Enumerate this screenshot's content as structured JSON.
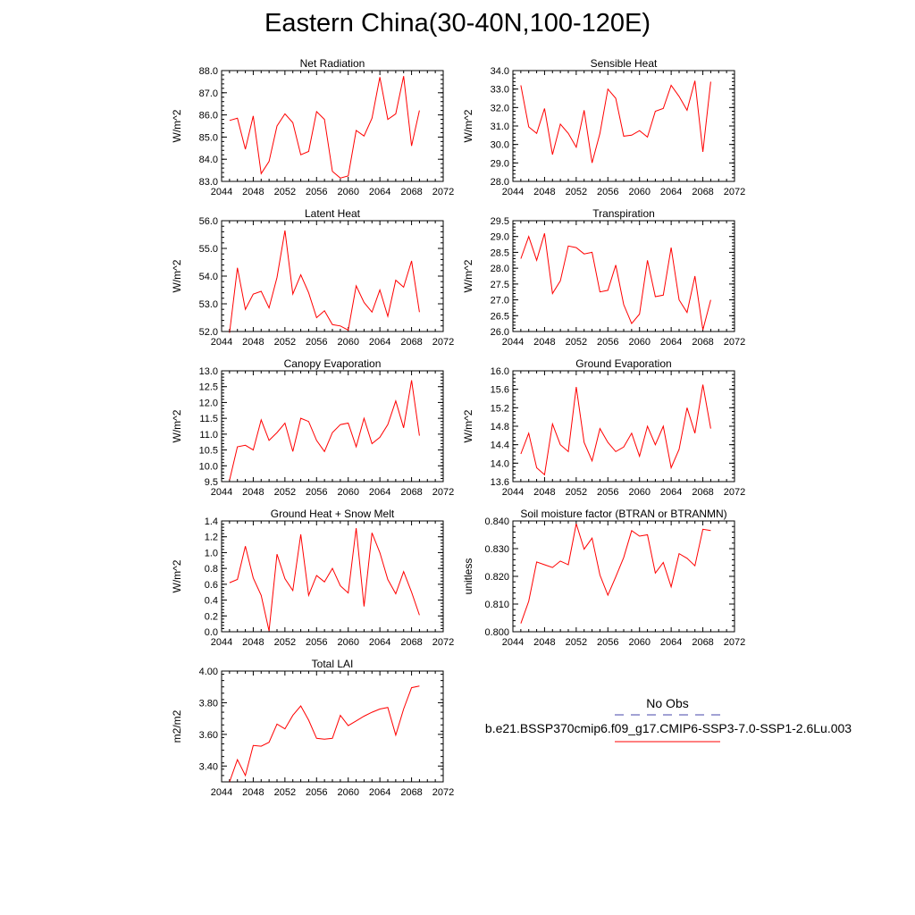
{
  "title": "Eastern China(30-40N,100-120E)",
  "legend": {
    "obs_label": "No Obs",
    "obs_color": "#4444aa",
    "case_label": "b.e21.BSSP370cmip6.f09_g17.CMIP6-SSP3-7.0-SSP1-2.6Lu.003",
    "case_color": "#ff0000"
  },
  "line_color": "#ff0000",
  "chart_data": [
    {
      "type": "line",
      "title": "Net Radiation",
      "ylabel": "W/m^2",
      "xlim": [
        2044,
        2072
      ],
      "ylim": [
        83.0,
        88.0
      ],
      "xticks": [
        "2044",
        "2048",
        "2052",
        "2056",
        "2060",
        "2064",
        "2068",
        "2072"
      ],
      "yticks": [
        "83.0",
        "84.0",
        "85.0",
        "86.0",
        "87.0",
        "88.0"
      ],
      "x": [
        2045,
        2046,
        2047,
        2048,
        2049,
        2050,
        2051,
        2052,
        2053,
        2054,
        2055,
        2056,
        2057,
        2058,
        2059,
        2060,
        2061,
        2062,
        2063,
        2064,
        2065,
        2066,
        2067,
        2068,
        2069
      ],
      "values": [
        85.75,
        85.85,
        84.45,
        85.95,
        83.35,
        83.9,
        85.5,
        86.05,
        85.65,
        84.2,
        84.35,
        86.15,
        85.8,
        83.45,
        83.15,
        83.25,
        85.3,
        85.05,
        85.85,
        87.7,
        85.8,
        86.05,
        87.75,
        84.6,
        86.2
      ]
    },
    {
      "type": "line",
      "title": "Sensible Heat",
      "ylabel": "W/m^2",
      "xlim": [
        2044,
        2072
      ],
      "ylim": [
        28.0,
        34.0
      ],
      "xticks": [
        "2044",
        "2048",
        "2052",
        "2056",
        "2060",
        "2064",
        "2068",
        "2072"
      ],
      "yticks": [
        "28.0",
        "29.0",
        "30.0",
        "31.0",
        "32.0",
        "33.0",
        "34.0"
      ],
      "x": [
        2045,
        2046,
        2047,
        2048,
        2049,
        2050,
        2051,
        2052,
        2053,
        2054,
        2055,
        2056,
        2057,
        2058,
        2059,
        2060,
        2061,
        2062,
        2063,
        2064,
        2065,
        2066,
        2067,
        2068,
        2069
      ],
      "values": [
        33.2,
        30.95,
        30.6,
        31.95,
        29.45,
        31.1,
        30.6,
        29.85,
        31.85,
        29.0,
        30.6,
        33.0,
        32.5,
        30.45,
        30.5,
        30.75,
        30.4,
        31.8,
        31.95,
        33.2,
        32.6,
        31.85,
        33.45,
        29.6,
        33.4
      ]
    },
    {
      "type": "line",
      "title": "Latent Heat",
      "ylabel": "W/m^2",
      "xlim": [
        2044,
        2072
      ],
      "ylim": [
        52.0,
        56.0
      ],
      "xticks": [
        "2044",
        "2048",
        "2052",
        "2056",
        "2060",
        "2064",
        "2068",
        "2072"
      ],
      "yticks": [
        "52.0",
        "53.0",
        "54.0",
        "55.0",
        "56.0"
      ],
      "x": [
        2045,
        2046,
        2047,
        2048,
        2049,
        2050,
        2051,
        2052,
        2053,
        2054,
        2055,
        2056,
        2057,
        2058,
        2059,
        2060,
        2061,
        2062,
        2063,
        2064,
        2065,
        2066,
        2067,
        2068,
        2069
      ],
      "values": [
        51.95,
        54.3,
        52.8,
        53.35,
        53.45,
        52.85,
        53.95,
        55.65,
        53.35,
        54.05,
        53.4,
        52.5,
        52.75,
        52.25,
        52.2,
        52.05,
        53.65,
        53.05,
        52.7,
        53.5,
        52.55,
        53.85,
        53.6,
        54.55,
        52.7
      ]
    },
    {
      "type": "line",
      "title": "Transpiration",
      "ylabel": "W/m^2",
      "xlim": [
        2044,
        2072
      ],
      "ylim": [
        26.0,
        29.5
      ],
      "xticks": [
        "2044",
        "2048",
        "2052",
        "2056",
        "2060",
        "2064",
        "2068",
        "2072"
      ],
      "yticks": [
        "26.0",
        "26.5",
        "27.0",
        "27.5",
        "28.0",
        "28.5",
        "29.0",
        "29.5"
      ],
      "x": [
        2045,
        2046,
        2047,
        2048,
        2049,
        2050,
        2051,
        2052,
        2053,
        2054,
        2055,
        2056,
        2057,
        2058,
        2059,
        2060,
        2061,
        2062,
        2063,
        2064,
        2065,
        2066,
        2067,
        2068,
        2069
      ],
      "values": [
        28.3,
        29.0,
        28.25,
        29.1,
        27.2,
        27.6,
        28.7,
        28.65,
        28.45,
        28.5,
        27.25,
        27.3,
        28.1,
        26.85,
        26.25,
        26.55,
        28.25,
        27.1,
        27.15,
        28.65,
        27.0,
        26.6,
        27.75,
        26.05,
        27.0
      ]
    },
    {
      "type": "line",
      "title": "Canopy Evaporation",
      "ylabel": "W/m^2",
      "xlim": [
        2044,
        2072
      ],
      "ylim": [
        9.5,
        13.0
      ],
      "xticks": [
        "2044",
        "2048",
        "2052",
        "2056",
        "2060",
        "2064",
        "2068",
        "2072"
      ],
      "yticks": [
        "9.5",
        "10.0",
        "10.5",
        "11.0",
        "11.5",
        "12.0",
        "12.5",
        "13.0"
      ],
      "x": [
        2045,
        2046,
        2047,
        2048,
        2049,
        2050,
        2051,
        2052,
        2053,
        2054,
        2055,
        2056,
        2057,
        2058,
        2059,
        2060,
        2061,
        2062,
        2063,
        2064,
        2065,
        2066,
        2067,
        2068,
        2069
      ],
      "values": [
        9.55,
        10.6,
        10.65,
        10.5,
        11.45,
        10.8,
        11.05,
        11.35,
        10.45,
        11.5,
        11.4,
        10.8,
        10.45,
        11.05,
        11.3,
        11.35,
        10.6,
        11.5,
        10.7,
        10.9,
        11.3,
        12.05,
        11.2,
        12.7,
        10.95
      ]
    },
    {
      "type": "line",
      "title": "Ground Evaporation",
      "ylabel": "W/m^2",
      "xlim": [
        2044,
        2072
      ],
      "ylim": [
        13.6,
        16.0
      ],
      "xticks": [
        "2044",
        "2048",
        "2052",
        "2056",
        "2060",
        "2064",
        "2068",
        "2072"
      ],
      "yticks": [
        "13.6",
        "14.0",
        "14.4",
        "14.8",
        "15.2",
        "15.6",
        "16.0"
      ],
      "x": [
        2045,
        2046,
        2047,
        2048,
        2049,
        2050,
        2051,
        2052,
        2053,
        2054,
        2055,
        2056,
        2057,
        2058,
        2059,
        2060,
        2061,
        2062,
        2063,
        2064,
        2065,
        2066,
        2067,
        2068,
        2069
      ],
      "values": [
        14.2,
        14.65,
        13.9,
        13.75,
        14.85,
        14.4,
        14.25,
        15.65,
        14.45,
        14.05,
        14.75,
        14.45,
        14.25,
        14.35,
        14.65,
        14.15,
        14.8,
        14.4,
        14.8,
        13.9,
        14.3,
        15.2,
        14.65,
        15.7,
        14.75
      ]
    },
    {
      "type": "line",
      "title": "Ground Heat + Snow Melt",
      "ylabel": "W/m^2",
      "xlim": [
        2044,
        2072
      ],
      "ylim": [
        0.0,
        1.4
      ],
      "xticks": [
        "2044",
        "2048",
        "2052",
        "2056",
        "2060",
        "2064",
        "2068",
        "2072"
      ],
      "yticks": [
        "0.0",
        "0.2",
        "0.4",
        "0.6",
        "0.8",
        "1.0",
        "1.2",
        "1.4"
      ],
      "x": [
        2045,
        2046,
        2047,
        2048,
        2049,
        2050,
        2051,
        2052,
        2053,
        2054,
        2055,
        2056,
        2057,
        2058,
        2059,
        2060,
        2061,
        2062,
        2063,
        2064,
        2065,
        2066,
        2067,
        2068,
        2069
      ],
      "values": [
        0.62,
        0.66,
        1.08,
        0.68,
        0.46,
        0.01,
        0.98,
        0.67,
        0.52,
        1.23,
        0.46,
        0.71,
        0.63,
        0.8,
        0.58,
        0.49,
        1.31,
        0.32,
        1.25,
        1.0,
        0.66,
        0.48,
        0.76,
        0.5,
        0.21
      ]
    },
    {
      "type": "line",
      "title": "Soil moisture factor (BTRAN or BTRANMN)",
      "ylabel": "unitless",
      "xlim": [
        2044,
        2072
      ],
      "ylim": [
        0.8,
        0.84
      ],
      "xticks": [
        "2044",
        "2048",
        "2052",
        "2056",
        "2060",
        "2064",
        "2068",
        "2072"
      ],
      "yticks": [
        "0.800",
        "0.810",
        "0.820",
        "0.830",
        "0.840"
      ],
      "x": [
        2045,
        2046,
        2047,
        2048,
        2049,
        2050,
        2051,
        2052,
        2053,
        2054,
        2055,
        2056,
        2057,
        2058,
        2059,
        2060,
        2061,
        2062,
        2063,
        2064,
        2065,
        2066,
        2067,
        2068,
        2069
      ],
      "values": [
        0.803,
        0.811,
        0.8252,
        0.8242,
        0.8232,
        0.8255,
        0.8242,
        0.839,
        0.8298,
        0.8338,
        0.8205,
        0.8132,
        0.8198,
        0.8268,
        0.8365,
        0.8345,
        0.835,
        0.8212,
        0.825,
        0.8162,
        0.8282,
        0.8265,
        0.8238,
        0.837,
        0.8365
      ]
    },
    {
      "type": "line",
      "title": "Total LAI",
      "ylabel": "m2/m2",
      "xlim": [
        2044,
        2072
      ],
      "ylim": [
        3.3,
        4.0
      ],
      "xticks": [
        "2044",
        "2048",
        "2052",
        "2056",
        "2060",
        "2064",
        "2068",
        "2072"
      ],
      "yticks": [
        "3.40",
        "3.60",
        "3.80",
        "4.00"
      ],
      "x": [
        2045,
        2046,
        2047,
        2048,
        2049,
        2050,
        2051,
        2052,
        2053,
        2054,
        2055,
        2056,
        2057,
        2058,
        2059,
        2060,
        2061,
        2062,
        2063,
        2064,
        2065,
        2066,
        2067,
        2068,
        2069
      ],
      "values": [
        3.3,
        3.44,
        3.34,
        3.53,
        3.525,
        3.55,
        3.665,
        3.635,
        3.72,
        3.78,
        3.69,
        3.575,
        3.57,
        3.575,
        3.72,
        3.655,
        3.685,
        3.715,
        3.74,
        3.76,
        3.77,
        3.595,
        3.76,
        3.895,
        3.905
      ]
    }
  ]
}
